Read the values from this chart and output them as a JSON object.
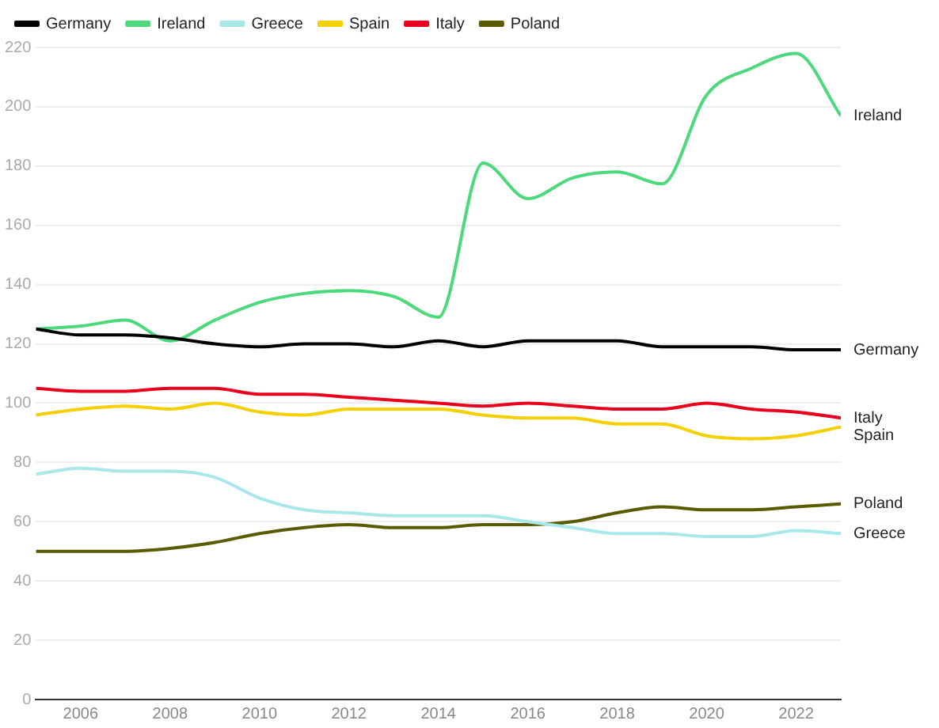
{
  "chart_data": {
    "type": "line",
    "x": [
      2005,
      2006,
      2007,
      2008,
      2009,
      2010,
      2011,
      2012,
      2013,
      2014,
      2015,
      2016,
      2017,
      2018,
      2019,
      2020,
      2021,
      2022,
      2023
    ],
    "series": [
      {
        "name": "Germany",
        "color": "#000000",
        "values": [
          125,
          123,
          123,
          122,
          120,
          119,
          120,
          120,
          119,
          121,
          119,
          121,
          121,
          121,
          119,
          119,
          119,
          118,
          118
        ]
      },
      {
        "name": "Ireland",
        "color": "#4cd97b",
        "values": [
          125,
          126,
          128,
          121,
          128,
          134,
          137,
          138,
          136,
          129,
          181,
          169,
          176,
          178,
          174,
          204,
          213,
          218,
          197
        ]
      },
      {
        "name": "Greece",
        "color": "#a8e8e8",
        "values": [
          76,
          78,
          77,
          77,
          75,
          68,
          64,
          63,
          62,
          62,
          62,
          60,
          58,
          56,
          56,
          55,
          55,
          57,
          56
        ]
      },
      {
        "name": "Spain",
        "color": "#f5d000",
        "values": [
          96,
          98,
          99,
          98,
          100,
          97,
          96,
          98,
          98,
          98,
          96,
          95,
          95,
          93,
          93,
          89,
          88,
          89,
          92
        ]
      },
      {
        "name": "Italy",
        "color": "#e8001c",
        "values": [
          105,
          104,
          104,
          105,
          105,
          103,
          103,
          102,
          101,
          100,
          99,
          100,
          99,
          98,
          98,
          100,
          98,
          97,
          95
        ]
      },
      {
        "name": "Poland",
        "color": "#5a5a00",
        "values": [
          50,
          50,
          50,
          51,
          53,
          56,
          58,
          59,
          58,
          58,
          59,
          59,
          60,
          63,
          65,
          64,
          64,
          65,
          66
        ]
      }
    ],
    "xlim": [
      2005,
      2023
    ],
    "xticks": [
      2006,
      2008,
      2010,
      2012,
      2014,
      2016,
      2018,
      2020,
      2022
    ],
    "ylim": [
      0,
      220
    ],
    "yticks": [
      0,
      20,
      40,
      60,
      80,
      100,
      120,
      140,
      160,
      180,
      200,
      220
    ],
    "grid": "y",
    "legend": "top left",
    "marker": "none",
    "line_style": "solid"
  }
}
